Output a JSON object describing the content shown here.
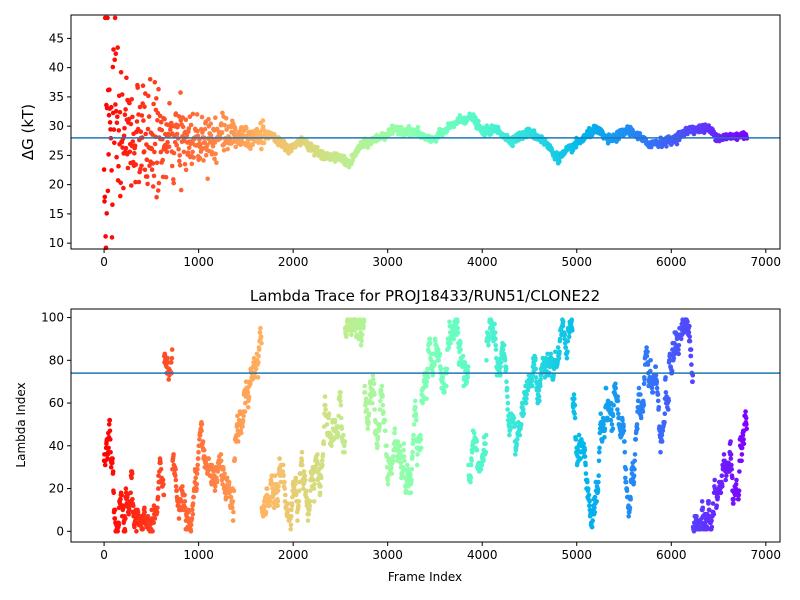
{
  "chart_data": [
    {
      "type": "scatter",
      "title": "",
      "xlabel": "",
      "ylabel": "ΔG (kT)",
      "xlim": [
        -350,
        7150
      ],
      "ylim": [
        9,
        49
      ],
      "xticks": [
        0,
        1000,
        2000,
        3000,
        4000,
        5000,
        6000,
        7000
      ],
      "yticks": [
        10,
        15,
        20,
        25,
        30,
        35,
        40,
        45
      ],
      "xtick_labels": [
        "0",
        "1000",
        "2000",
        "3000",
        "4000",
        "5000",
        "6000",
        "7000"
      ],
      "ytick_labels": [
        "10",
        "15",
        "20",
        "25",
        "30",
        "35",
        "40",
        "45"
      ],
      "hline": 28.0,
      "hline_color": "#1f77b4",
      "colormap": "rainbow (red at frame 0 → violet at last frame)",
      "grid": false,
      "x_range": [
        0,
        6800
      ],
      "sampled_trace": [
        {
          "x": 0,
          "y": 27
        },
        {
          "x": 50,
          "y": 29
        },
        {
          "x": 150,
          "y": 28
        },
        {
          "x": 300,
          "y": 28
        },
        {
          "x": 500,
          "y": 27.5
        },
        {
          "x": 750,
          "y": 27
        },
        {
          "x": 1000,
          "y": 28
        },
        {
          "x": 1300,
          "y": 28.5
        },
        {
          "x": 1500,
          "y": 28.5
        },
        {
          "x": 1700,
          "y": 28.5
        },
        {
          "x": 1800,
          "y": 28
        },
        {
          "x": 1950,
          "y": 26
        },
        {
          "x": 2100,
          "y": 27.5
        },
        {
          "x": 2300,
          "y": 25
        },
        {
          "x": 2500,
          "y": 24.5
        },
        {
          "x": 2600,
          "y": 23.5
        },
        {
          "x": 2700,
          "y": 26.5
        },
        {
          "x": 2900,
          "y": 28
        },
        {
          "x": 3100,
          "y": 29.5
        },
        {
          "x": 3300,
          "y": 29
        },
        {
          "x": 3450,
          "y": 27.5
        },
        {
          "x": 3600,
          "y": 29
        },
        {
          "x": 3750,
          "y": 31
        },
        {
          "x": 3900,
          "y": 31.5
        },
        {
          "x": 4000,
          "y": 29
        },
        {
          "x": 4150,
          "y": 29.5
        },
        {
          "x": 4300,
          "y": 27.5
        },
        {
          "x": 4500,
          "y": 29
        },
        {
          "x": 4650,
          "y": 27.5
        },
        {
          "x": 4800,
          "y": 24.5
        },
        {
          "x": 5000,
          "y": 27
        },
        {
          "x": 5200,
          "y": 29.5
        },
        {
          "x": 5350,
          "y": 27.5
        },
        {
          "x": 5550,
          "y": 29.5
        },
        {
          "x": 5750,
          "y": 27
        },
        {
          "x": 6000,
          "y": 27.5
        },
        {
          "x": 6200,
          "y": 29.5
        },
        {
          "x": 6400,
          "y": 29.5
        },
        {
          "x": 6500,
          "y": 28
        },
        {
          "x": 6800,
          "y": 28.5
        }
      ]
    },
    {
      "type": "scatter",
      "title": "Lambda Trace for PROJ18433/RUN51/CLONE22",
      "xlabel": "Frame Index",
      "ylabel": "Lambda Index",
      "xlim": [
        -350,
        7150
      ],
      "ylim": [
        -5,
        104
      ],
      "xticks": [
        0,
        1000,
        2000,
        3000,
        4000,
        5000,
        6000,
        7000
      ],
      "yticks": [
        0,
        20,
        40,
        60,
        80,
        100
      ],
      "xtick_labels": [
        "0",
        "1000",
        "2000",
        "3000",
        "4000",
        "5000",
        "6000",
        "7000"
      ],
      "ytick_labels": [
        "0",
        "20",
        "40",
        "60",
        "80",
        "100"
      ],
      "hline": 74,
      "hline_color": "#1f77b4",
      "colormap": "rainbow (red at frame 0 → violet at last frame)",
      "grid": false,
      "x_range": [
        0,
        6800
      ],
      "lambda_range": [
        0,
        99
      ]
    }
  ]
}
